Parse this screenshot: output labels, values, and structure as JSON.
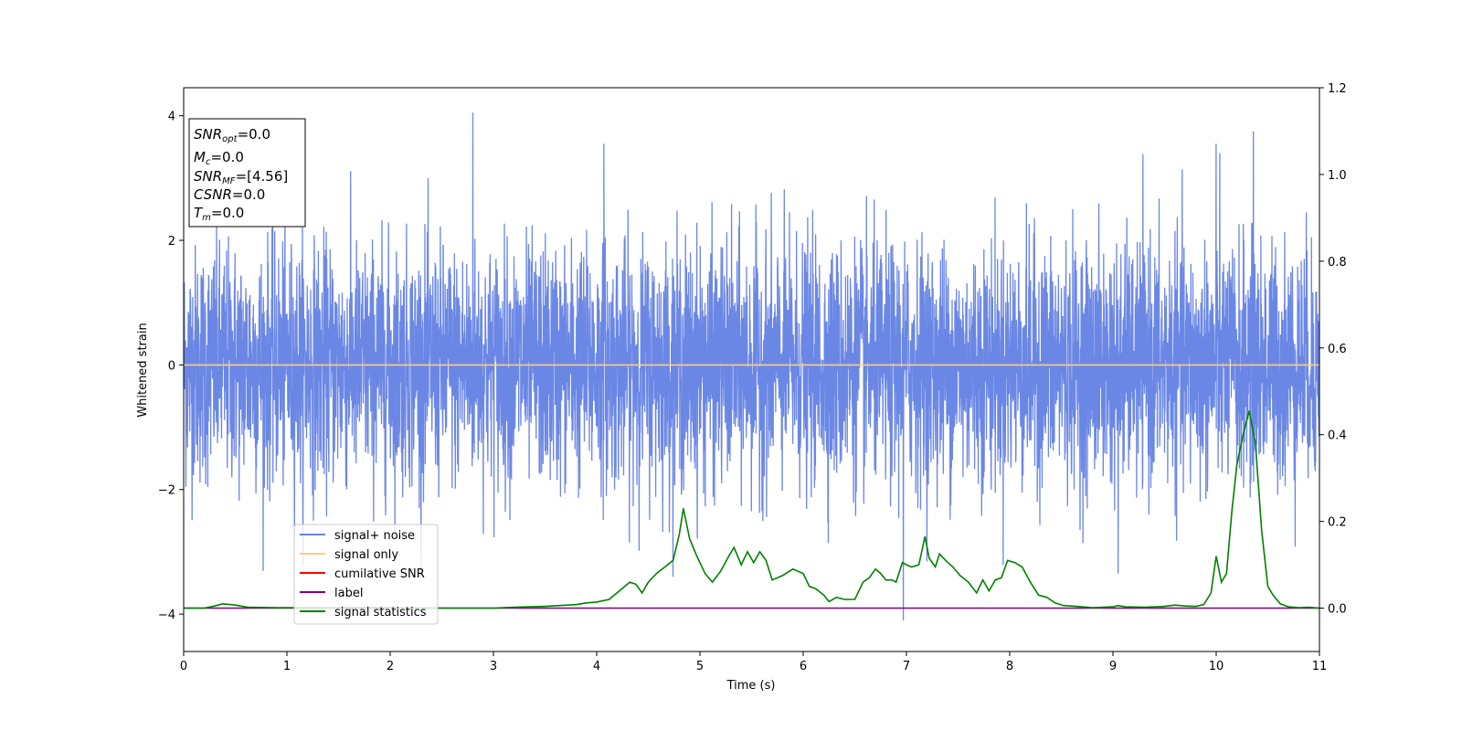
{
  "chart_data": {
    "type": "line",
    "xlabel": "Time (s)",
    "ylabel": "Whitened strain",
    "xlim": [
      0,
      11
    ],
    "ylim": [
      -4.6,
      4.45
    ],
    "ylim_right": [
      -0.1,
      1.2
    ],
    "x_ticks": [
      "0",
      "1",
      "2",
      "3",
      "4",
      "5",
      "6",
      "7",
      "8",
      "9",
      "10",
      "11"
    ],
    "y_ticks": [
      "−4",
      "−2",
      "0",
      "2",
      "4"
    ],
    "y_right_ticks": [
      "0.0",
      "0.2",
      "0.4",
      "0.6",
      "0.8",
      "1.0",
      "1.2"
    ],
    "grid": false,
    "legend_position": "lower-left",
    "info_box": {
      "snr_opt": {
        "base": "SNR",
        "sub": "opt",
        "value": "=0.0"
      },
      "mc": {
        "base": "M",
        "sub": "c",
        "value": "=0.0"
      },
      "snr_mf": {
        "base": "SNR",
        "sub": "MF",
        "value": "=[4.56]"
      },
      "csnr": {
        "base": "CSNR",
        "sub": "",
        "value": "=0.0"
      },
      "tm": {
        "base": "T",
        "sub": "m",
        "value": "=0.0"
      }
    },
    "series": [
      {
        "name": "signal+ noise",
        "color": "#6b87e5",
        "axis": "left",
        "description_values": {
          "noise_sigma": 1.0,
          "range": [
            -4.1,
            4.05
          ]
        },
        "peaks": [
          [
            2.8,
            4.05
          ],
          [
            6.97,
            -4.1
          ],
          [
            10.36,
            3.75
          ],
          [
            10.0,
            3.55
          ],
          [
            4.07,
            3.55
          ],
          [
            9.05,
            -3.35
          ]
        ]
      },
      {
        "name": "signal only",
        "color": "#ffcc80",
        "axis": "left",
        "x": [
          0,
          11
        ],
        "values": [
          0,
          0
        ]
      },
      {
        "name": "cumilative SNR",
        "color": "#ff0000",
        "axis": "right",
        "x": [],
        "values": []
      },
      {
        "name": "label",
        "color": "#800080",
        "axis": "right",
        "x": [
          0,
          11
        ],
        "values": [
          0,
          0
        ]
      },
      {
        "name": "signal statistics",
        "color": "#008000",
        "axis": "right",
        "x": [
          0,
          0.2,
          0.3,
          0.38,
          0.5,
          0.62,
          0.9,
          1.4,
          2.0,
          2.5,
          3.0,
          3.2,
          3.5,
          3.8,
          3.9,
          4.0,
          4.12,
          4.22,
          4.32,
          4.38,
          4.44,
          4.5,
          4.58,
          4.66,
          4.74,
          4.8,
          4.84,
          4.9,
          4.97,
          5.05,
          5.12,
          5.2,
          5.28,
          5.33,
          5.4,
          5.46,
          5.52,
          5.58,
          5.64,
          5.7,
          5.8,
          5.9,
          6.0,
          6.06,
          6.12,
          6.2,
          6.25,
          6.32,
          6.4,
          6.5,
          6.58,
          6.64,
          6.7,
          6.75,
          6.8,
          6.86,
          6.9,
          6.96,
          7.0,
          7.05,
          7.12,
          7.18,
          7.22,
          7.28,
          7.32,
          7.38,
          7.45,
          7.52,
          7.6,
          7.68,
          7.74,
          7.8,
          7.86,
          7.92,
          7.98,
          8.05,
          8.12,
          8.2,
          8.28,
          8.36,
          8.44,
          8.52,
          8.65,
          8.8,
          9.0,
          9.05,
          9.12,
          9.3,
          9.5,
          9.6,
          9.7,
          9.8,
          9.88,
          9.95,
          10.0,
          10.05,
          10.1,
          10.15,
          10.2,
          10.26,
          10.32,
          10.38,
          10.44,
          10.5,
          10.55,
          10.62,
          10.7,
          10.8,
          10.9,
          11.0
        ],
        "values": [
          0.0,
          0.0,
          0.005,
          0.01,
          0.007,
          0.002,
          0.001,
          0.001,
          0.001,
          0.0,
          0.0,
          0.002,
          0.004,
          0.008,
          0.012,
          0.014,
          0.02,
          0.04,
          0.06,
          0.055,
          0.035,
          0.06,
          0.08,
          0.095,
          0.11,
          0.17,
          0.23,
          0.16,
          0.12,
          0.08,
          0.06,
          0.085,
          0.12,
          0.14,
          0.1,
          0.13,
          0.105,
          0.13,
          0.11,
          0.065,
          0.075,
          0.09,
          0.08,
          0.05,
          0.045,
          0.03,
          0.015,
          0.025,
          0.02,
          0.02,
          0.06,
          0.07,
          0.09,
          0.08,
          0.065,
          0.065,
          0.06,
          0.105,
          0.1,
          0.095,
          0.1,
          0.165,
          0.115,
          0.095,
          0.125,
          0.11,
          0.095,
          0.075,
          0.06,
          0.035,
          0.065,
          0.04,
          0.065,
          0.07,
          0.11,
          0.105,
          0.095,
          0.06,
          0.03,
          0.025,
          0.012,
          0.006,
          0.004,
          0.001,
          0.003,
          0.006,
          0.003,
          0.002,
          0.004,
          0.007,
          0.005,
          0.004,
          0.008,
          0.035,
          0.12,
          0.06,
          0.08,
          0.22,
          0.33,
          0.4,
          0.455,
          0.38,
          0.18,
          0.05,
          0.03,
          0.01,
          0.003,
          0.001,
          0.002,
          0.0
        ]
      }
    ]
  }
}
